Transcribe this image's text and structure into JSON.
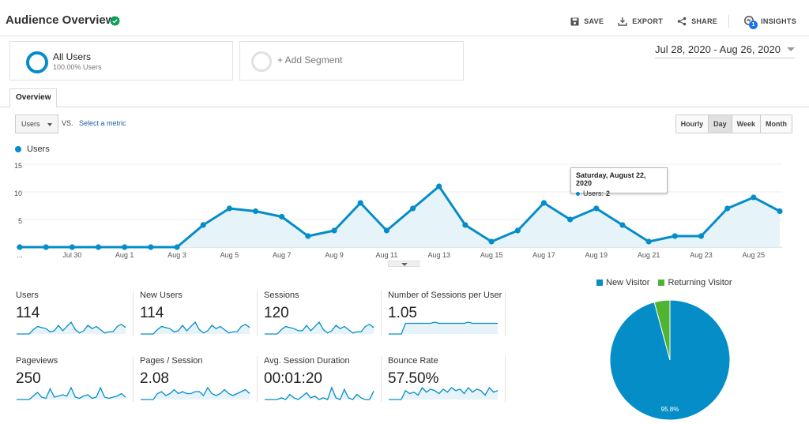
{
  "header": {
    "title": "Audience Overview",
    "actions": {
      "save": "SAVE",
      "export": "EXPORT",
      "share": "SHARE",
      "insights": "INSIGHTS",
      "insights_badge": "1"
    }
  },
  "segments": {
    "all_users": {
      "title": "All Users",
      "subtitle": "100.00% Users"
    },
    "add_segment": "+ Add Segment"
  },
  "date_range": "Jul 28, 2020 - Aug 26, 2020",
  "tabs": [
    "Overview"
  ],
  "controls": {
    "metric_select": "Users",
    "vs": "VS.",
    "select_metric": "Select a metric",
    "granularity": [
      "Hourly",
      "Day",
      "Week",
      "Month"
    ],
    "active_granularity": "Day"
  },
  "legend": {
    "series": "Users"
  },
  "tooltip": {
    "title": "Saturday, August 22, 2020",
    "label": "Users:",
    "value": "2"
  },
  "colors": {
    "accent": "#058dc7",
    "returning": "#50b432",
    "fill": "#e6f3f9"
  },
  "chart_data": [
    {
      "type": "area",
      "series": [
        {
          "name": "Users",
          "values": [
            0,
            0,
            0,
            0,
            0,
            0,
            0,
            4,
            7,
            6.5,
            5.5,
            2,
            3,
            8,
            3,
            7,
            11,
            4,
            1,
            3,
            8,
            5,
            7,
            4,
            1,
            2,
            2,
            7,
            9,
            6.5
          ]
        }
      ],
      "x": [
        "Jul 28",
        "Jul 29",
        "Jul 30",
        "Jul 31",
        "Aug 1",
        "Aug 2",
        "Aug 3",
        "Aug 4",
        "Aug 5",
        "Aug 6",
        "Aug 7",
        "Aug 8",
        "Aug 9",
        "Aug 10",
        "Aug 11",
        "Aug 12",
        "Aug 13",
        "Aug 14",
        "Aug 15",
        "Aug 16",
        "Aug 17",
        "Aug 18",
        "Aug 19",
        "Aug 20",
        "Aug 21",
        "Aug 22",
        "Aug 23",
        "Aug 24",
        "Aug 25",
        "Aug 26"
      ],
      "xticks": [
        "...",
        "Jul 30",
        "Aug 1",
        "Aug 3",
        "Aug 5",
        "Aug 7",
        "Aug 9",
        "Aug 11",
        "Aug 13",
        "Aug 15",
        "Aug 17",
        "Aug 19",
        "Aug 21",
        "Aug 23",
        "Aug 25"
      ],
      "xtick_index": [
        0,
        2,
        4,
        6,
        8,
        10,
        12,
        14,
        16,
        18,
        20,
        22,
        24,
        26,
        28
      ],
      "yticks": [
        5,
        10,
        15
      ],
      "ylim": [
        0,
        15
      ],
      "grid": true
    },
    {
      "type": "pie",
      "slices": [
        {
          "name": "New Visitor",
          "value": 95.8,
          "label": "95.8%"
        },
        {
          "name": "Returning Visitor",
          "value": 4.2
        }
      ],
      "legend": "top"
    }
  ],
  "metrics": [
    {
      "name": "Users",
      "value": "114",
      "spark": [
        0,
        0,
        0,
        0,
        4,
        7,
        6,
        5,
        2,
        3,
        8,
        3,
        7,
        11,
        4,
        1,
        3,
        8,
        5,
        7,
        4,
        1,
        2,
        2,
        7,
        9,
        6
      ]
    },
    {
      "name": "New Users",
      "value": "114",
      "spark": [
        0,
        0,
        0,
        0,
        4,
        7,
        6,
        5,
        2,
        3,
        8,
        3,
        7,
        11,
        4,
        1,
        3,
        8,
        5,
        7,
        4,
        1,
        2,
        2,
        7,
        9,
        6
      ]
    },
    {
      "name": "Sessions",
      "value": "120",
      "spark": [
        0,
        0,
        0,
        0,
        4,
        7,
        6,
        5,
        3,
        3,
        8,
        3,
        7,
        11,
        4,
        1,
        3,
        8,
        5,
        7,
        4,
        1,
        2,
        2,
        7,
        9,
        6
      ]
    },
    {
      "name": "Number of Sessions per User",
      "value": "1.05",
      "spark": [
        0,
        0,
        0,
        0,
        9,
        9,
        9,
        9,
        9,
        9,
        9,
        10,
        9,
        9,
        9,
        9,
        9,
        9,
        9,
        10,
        9,
        9,
        9,
        9,
        9,
        9,
        9
      ]
    },
    {
      "name": "Pageviews",
      "value": "250",
      "spark": [
        0,
        0,
        0,
        0,
        3,
        6,
        2,
        1,
        9,
        2,
        3,
        4,
        3,
        10,
        2,
        1,
        3,
        4,
        1,
        2,
        10,
        2,
        1,
        2,
        3,
        5,
        2
      ]
    },
    {
      "name": "Pages / Session",
      "value": "2.08",
      "spark": [
        0,
        0,
        0,
        0,
        3,
        4,
        2,
        3,
        5,
        3,
        4,
        3,
        3,
        4,
        4,
        2,
        6,
        3,
        2,
        3,
        5,
        3,
        2,
        3,
        4,
        5,
        3
      ]
    },
    {
      "name": "Avg. Session Duration",
      "value": "00:01:20",
      "spark": [
        0,
        0,
        0,
        0,
        1,
        0,
        3,
        1,
        0,
        2,
        4,
        1,
        2,
        0,
        1,
        0,
        7,
        1,
        0,
        6,
        1,
        0,
        3,
        1,
        0,
        0,
        5
      ]
    },
    {
      "name": "Bounce Rate",
      "value": "57.50%",
      "spark": [
        0,
        0,
        0,
        0,
        6,
        4,
        5,
        3,
        8,
        5,
        7,
        6,
        4,
        7,
        5,
        8,
        6,
        7,
        4,
        8,
        5,
        7,
        6,
        3,
        8,
        5,
        6
      ]
    }
  ]
}
